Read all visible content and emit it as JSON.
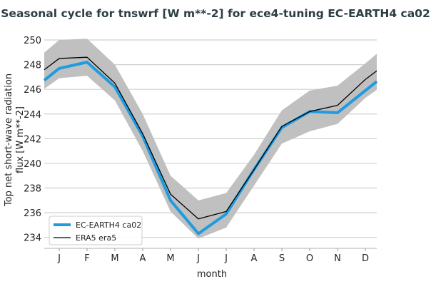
{
  "chart_data": {
    "type": "line",
    "title": "Seasonal cycle for tnswrf [W m**-2] for ece4-tuning EC-EARTH4 ca02",
    "xlabel": "month",
    "ylabel": [
      "Top net short-wave radiation",
      "flux [W m**-2]"
    ],
    "categories": [
      "J",
      "F",
      "M",
      "A",
      "M",
      "J",
      "J",
      "A",
      "S",
      "O",
      "N",
      "D"
    ],
    "ylim": [
      233.5,
      250.5
    ],
    "yticks": [
      234,
      236,
      238,
      240,
      242,
      244,
      246,
      248,
      250
    ],
    "grid": "horizontal",
    "legend_placement": "bottom-left",
    "series": [
      {
        "name": "EC-EARTH4 ca02",
        "color": "#1f9be0",
        "values": [
          247.7,
          248.2,
          246.2,
          242.2,
          237.0,
          234.3,
          235.9,
          239.5,
          242.9,
          244.2,
          244.1,
          245.9
        ]
      },
      {
        "name": "ERA5 era5",
        "color": "#000000",
        "values": [
          248.5,
          248.6,
          246.5,
          242.4,
          237.5,
          235.5,
          236.1,
          239.5,
          243.0,
          244.2,
          244.7,
          246.8
        ]
      }
    ],
    "band": {
      "color": "#c0c0c0",
      "upper": [
        250.0,
        250.1,
        248.0,
        244.0,
        239.0,
        237.0,
        237.6,
        240.7,
        244.3,
        245.9,
        246.3,
        248.1
      ],
      "lower": [
        246.9,
        247.1,
        245.1,
        241.0,
        236.1,
        233.9,
        234.8,
        238.2,
        241.6,
        242.6,
        243.2,
        245.3
      ]
    }
  }
}
